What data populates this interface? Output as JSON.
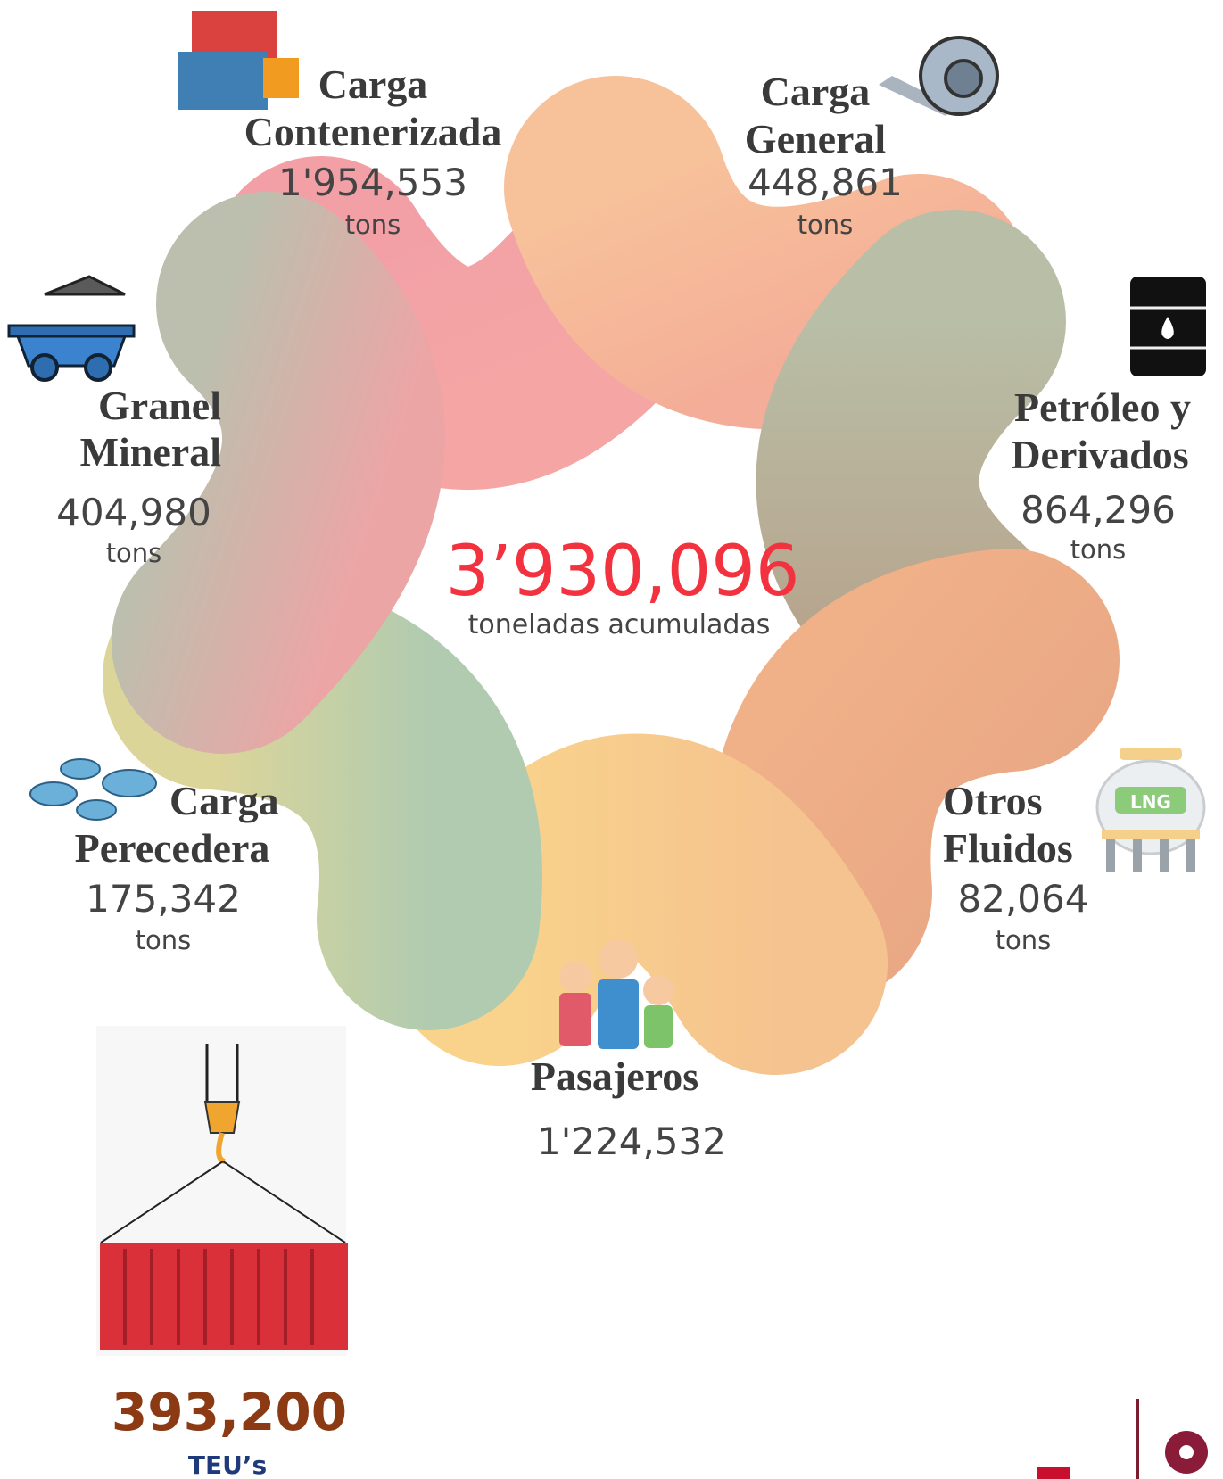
{
  "total": {
    "value": "3’930,096",
    "caption": "toneladas acumuladas"
  },
  "items": [
    {
      "title": [
        "Carga",
        "Contenerizada"
      ],
      "value": "1'954,553",
      "unit": "tons"
    },
    {
      "title": [
        "Carga",
        "General"
      ],
      "value": "448,861",
      "unit": "tons"
    },
    {
      "title": [
        "Granel",
        "Mineral"
      ],
      "value": "404,980",
      "unit": "tons"
    },
    {
      "title": [
        "Petróleo y",
        "Derivados"
      ],
      "value": "864,296",
      "unit": "tons"
    },
    {
      "title": [
        "Carga",
        "Perecedera"
      ],
      "value": "175,342",
      "unit": "tons"
    },
    {
      "title": [
        "Otros",
        "Fluidos"
      ],
      "value": "82,064",
      "unit": "tons"
    }
  ],
  "pasajeros": {
    "title": "Pasajeros",
    "value": "1'224,532"
  },
  "teus": {
    "value": "393,200",
    "label": "TEU’s"
  }
}
